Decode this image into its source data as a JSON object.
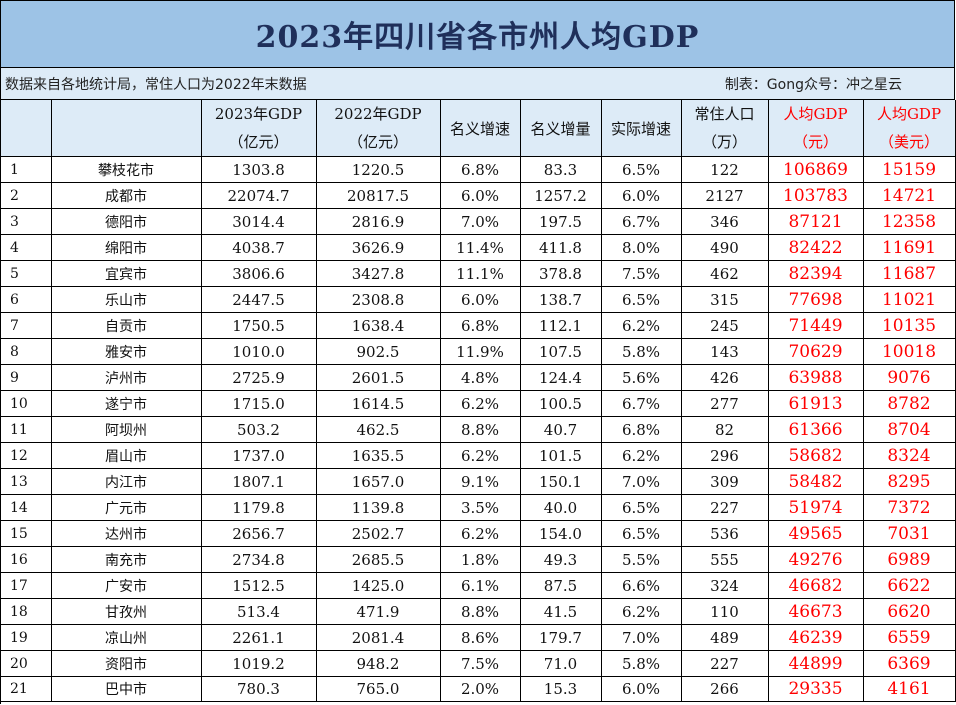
{
  "title": "2023年四川省各市州人均GDP",
  "note_left": "数据来自各地统计局，常住人口为2022年末数据",
  "note_right": "制表：Gong众号：冲之星云",
  "headers": {
    "gdp2023_l1": "2023年GDP",
    "gdp2023_l2": "（亿元）",
    "gdp2022_l1": "2022年GDP",
    "gdp2022_l2": "（亿元）",
    "nominal_growth": "名义增速",
    "nominal_increase": "名义增量",
    "real_growth": "实际增速",
    "population_l1": "常住人口",
    "population_l2": "（万）",
    "percap_cny_l1": "人均GDP",
    "percap_cny_l2": "（元）",
    "percap_usd_l1": "人均GDP",
    "percap_usd_l2": "（美元）"
  },
  "accent_colors": {
    "header_fill": "#ddebf7",
    "title_fill": "#9dc3e6",
    "highlight_text": "#ff0000"
  },
  "rows": [
    {
      "rank": "1",
      "city": "攀枝花市",
      "gdp2023": "1303.8",
      "gdp2022": "1220.5",
      "ng": "6.8%",
      "ni": "83.3",
      "rg": "6.5%",
      "pop": "122",
      "pc_cny": "106869",
      "pc_usd": "15159"
    },
    {
      "rank": "2",
      "city": "成都市",
      "gdp2023": "22074.7",
      "gdp2022": "20817.5",
      "ng": "6.0%",
      "ni": "1257.2",
      "rg": "6.0%",
      "pop": "2127",
      "pc_cny": "103783",
      "pc_usd": "14721"
    },
    {
      "rank": "3",
      "city": "德阳市",
      "gdp2023": "3014.4",
      "gdp2022": "2816.9",
      "ng": "7.0%",
      "ni": "197.5",
      "rg": "6.7%",
      "pop": "346",
      "pc_cny": "87121",
      "pc_usd": "12358"
    },
    {
      "rank": "4",
      "city": "绵阳市",
      "gdp2023": "4038.7",
      "gdp2022": "3626.9",
      "ng": "11.4%",
      "ni": "411.8",
      "rg": "8.0%",
      "pop": "490",
      "pc_cny": "82422",
      "pc_usd": "11691"
    },
    {
      "rank": "5",
      "city": "宜宾市",
      "gdp2023": "3806.6",
      "gdp2022": "3427.8",
      "ng": "11.1%",
      "ni": "378.8",
      "rg": "7.5%",
      "pop": "462",
      "pc_cny": "82394",
      "pc_usd": "11687"
    },
    {
      "rank": "6",
      "city": "乐山市",
      "gdp2023": "2447.5",
      "gdp2022": "2308.8",
      "ng": "6.0%",
      "ni": "138.7",
      "rg": "6.5%",
      "pop": "315",
      "pc_cny": "77698",
      "pc_usd": "11021"
    },
    {
      "rank": "7",
      "city": "自贡市",
      "gdp2023": "1750.5",
      "gdp2022": "1638.4",
      "ng": "6.8%",
      "ni": "112.1",
      "rg": "6.2%",
      "pop": "245",
      "pc_cny": "71449",
      "pc_usd": "10135"
    },
    {
      "rank": "8",
      "city": "雅安市",
      "gdp2023": "1010.0",
      "gdp2022": "902.5",
      "ng": "11.9%",
      "ni": "107.5",
      "rg": "5.8%",
      "pop": "143",
      "pc_cny": "70629",
      "pc_usd": "10018"
    },
    {
      "rank": "9",
      "city": "泸州市",
      "gdp2023": "2725.9",
      "gdp2022": "2601.5",
      "ng": "4.8%",
      "ni": "124.4",
      "rg": "5.6%",
      "pop": "426",
      "pc_cny": "63988",
      "pc_usd": "9076"
    },
    {
      "rank": "10",
      "city": "遂宁市",
      "gdp2023": "1715.0",
      "gdp2022": "1614.5",
      "ng": "6.2%",
      "ni": "100.5",
      "rg": "6.7%",
      "pop": "277",
      "pc_cny": "61913",
      "pc_usd": "8782"
    },
    {
      "rank": "11",
      "city": "阿坝州",
      "gdp2023": "503.2",
      "gdp2022": "462.5",
      "ng": "8.8%",
      "ni": "40.7",
      "rg": "6.8%",
      "pop": "82",
      "pc_cny": "61366",
      "pc_usd": "8704"
    },
    {
      "rank": "12",
      "city": "眉山市",
      "gdp2023": "1737.0",
      "gdp2022": "1635.5",
      "ng": "6.2%",
      "ni": "101.5",
      "rg": "6.2%",
      "pop": "296",
      "pc_cny": "58682",
      "pc_usd": "8324"
    },
    {
      "rank": "13",
      "city": "内江市",
      "gdp2023": "1807.1",
      "gdp2022": "1657.0",
      "ng": "9.1%",
      "ni": "150.1",
      "rg": "7.0%",
      "pop": "309",
      "pc_cny": "58482",
      "pc_usd": "8295"
    },
    {
      "rank": "14",
      "city": "广元市",
      "gdp2023": "1179.8",
      "gdp2022": "1139.8",
      "ng": "3.5%",
      "ni": "40.0",
      "rg": "6.5%",
      "pop": "227",
      "pc_cny": "51974",
      "pc_usd": "7372"
    },
    {
      "rank": "15",
      "city": "达州市",
      "gdp2023": "2656.7",
      "gdp2022": "2502.7",
      "ng": "6.2%",
      "ni": "154.0",
      "rg": "6.5%",
      "pop": "536",
      "pc_cny": "49565",
      "pc_usd": "7031"
    },
    {
      "rank": "16",
      "city": "南充市",
      "gdp2023": "2734.8",
      "gdp2022": "2685.5",
      "ng": "1.8%",
      "ni": "49.3",
      "rg": "5.5%",
      "pop": "555",
      "pc_cny": "49276",
      "pc_usd": "6989"
    },
    {
      "rank": "17",
      "city": "广安市",
      "gdp2023": "1512.5",
      "gdp2022": "1425.0",
      "ng": "6.1%",
      "ni": "87.5",
      "rg": "6.6%",
      "pop": "324",
      "pc_cny": "46682",
      "pc_usd": "6622"
    },
    {
      "rank": "18",
      "city": "甘孜州",
      "gdp2023": "513.4",
      "gdp2022": "471.9",
      "ng": "8.8%",
      "ni": "41.5",
      "rg": "6.2%",
      "pop": "110",
      "pc_cny": "46673",
      "pc_usd": "6620"
    },
    {
      "rank": "19",
      "city": "凉山州",
      "gdp2023": "2261.1",
      "gdp2022": "2081.4",
      "ng": "8.6%",
      "ni": "179.7",
      "rg": "7.0%",
      "pop": "489",
      "pc_cny": "46239",
      "pc_usd": "6559"
    },
    {
      "rank": "20",
      "city": "资阳市",
      "gdp2023": "1019.2",
      "gdp2022": "948.2",
      "ng": "7.5%",
      "ni": "71.0",
      "rg": "5.8%",
      "pop": "227",
      "pc_cny": "44899",
      "pc_usd": "6369"
    },
    {
      "rank": "21",
      "city": "巴中市",
      "gdp2023": "780.3",
      "gdp2022": "765.0",
      "ng": "2.0%",
      "ni": "15.3",
      "rg": "6.0%",
      "pop": "266",
      "pc_cny": "29335",
      "pc_usd": "4161"
    }
  ]
}
